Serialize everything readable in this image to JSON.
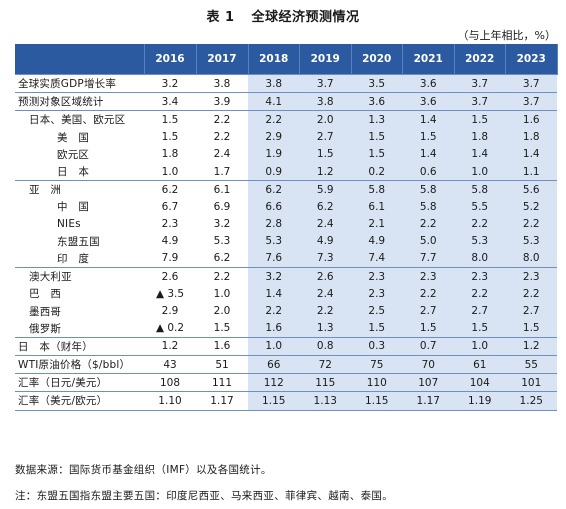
{
  "title": {
    "label": "表 1",
    "text": "全球经济预测情况"
  },
  "unit": "（与上年相比，%）",
  "columns": [
    "2016",
    "2017",
    "2018",
    "2019",
    "2020",
    "2021",
    "2022",
    "2023"
  ],
  "forecast_shading_color": "#d8e4f3",
  "header_color": "#2b5aa1",
  "rows": [
    {
      "label": "全球实质GDP增长率",
      "indent": 0,
      "sep": true,
      "values": [
        "3.2",
        "3.8",
        "3.8",
        "3.7",
        "3.5",
        "3.6",
        "3.7",
        "3.7"
      ]
    },
    {
      "label": "预测对象区域统计",
      "indent": 0,
      "sep": true,
      "values": [
        "3.4",
        "3.9",
        "4.1",
        "3.8",
        "3.6",
        "3.6",
        "3.7",
        "3.7"
      ]
    },
    {
      "label": "日本、美国、欧元区",
      "indent": 1,
      "sep": true,
      "values": [
        "1.5",
        "2.2",
        "2.2",
        "2.0",
        "1.3",
        "1.4",
        "1.5",
        "1.6"
      ]
    },
    {
      "label": "美　国",
      "indent": 2,
      "sep": false,
      "values": [
        "1.5",
        "2.2",
        "2.9",
        "2.7",
        "1.5",
        "1.5",
        "1.8",
        "1.8"
      ]
    },
    {
      "label": "欧元区",
      "indent": 2,
      "sep": false,
      "values": [
        "1.8",
        "2.4",
        "1.9",
        "1.5",
        "1.5",
        "1.4",
        "1.4",
        "1.4"
      ]
    },
    {
      "label": "日　本",
      "indent": 2,
      "sep": false,
      "values": [
        "1.0",
        "1.7",
        "0.9",
        "1.2",
        "0.2",
        "0.6",
        "1.0",
        "1.1"
      ]
    },
    {
      "label": "亚　洲",
      "indent": 1,
      "sep": true,
      "values": [
        "6.2",
        "6.1",
        "6.2",
        "5.9",
        "5.8",
        "5.8",
        "5.8",
        "5.6"
      ]
    },
    {
      "label": "中　国",
      "indent": 2,
      "sep": false,
      "values": [
        "6.7",
        "6.9",
        "6.6",
        "6.2",
        "6.1",
        "5.8",
        "5.5",
        "5.2"
      ]
    },
    {
      "label": "NIEs",
      "indent": 2,
      "sep": false,
      "values": [
        "2.3",
        "3.2",
        "2.8",
        "2.4",
        "2.1",
        "2.2",
        "2.2",
        "2.2"
      ]
    },
    {
      "label": "东盟五国",
      "indent": 2,
      "sep": false,
      "values": [
        "4.9",
        "5.3",
        "5.3",
        "4.9",
        "4.9",
        "5.0",
        "5.3",
        "5.3"
      ]
    },
    {
      "label": "印　度",
      "indent": 2,
      "sep": false,
      "values": [
        "7.9",
        "6.2",
        "7.6",
        "7.3",
        "7.4",
        "7.7",
        "8.0",
        "8.0"
      ]
    },
    {
      "label": "澳大利亚",
      "indent": 1,
      "sep": true,
      "values": [
        "2.6",
        "2.2",
        "3.2",
        "2.6",
        "2.3",
        "2.3",
        "2.3",
        "2.3"
      ]
    },
    {
      "label": "巴　西",
      "indent": 1,
      "sep": false,
      "values": [
        "▲ 3.5",
        "1.0",
        "1.4",
        "2.4",
        "2.3",
        "2.2",
        "2.2",
        "2.2"
      ]
    },
    {
      "label": "墨西哥",
      "indent": 1,
      "sep": false,
      "values": [
        "2.9",
        "2.0",
        "2.2",
        "2.2",
        "2.5",
        "2.7",
        "2.7",
        "2.7"
      ]
    },
    {
      "label": "俄罗斯",
      "indent": 1,
      "sep": false,
      "values": [
        "▲ 0.2",
        "1.5",
        "1.6",
        "1.3",
        "1.5",
        "1.5",
        "1.5",
        "1.5"
      ]
    },
    {
      "label": "日　本（财年）",
      "indent": 0,
      "sep": true,
      "values": [
        "1.2",
        "1.6",
        "1.0",
        "0.8",
        "0.3",
        "0.7",
        "1.0",
        "1.2"
      ]
    },
    {
      "label": "WTI原油价格（$/bbl）",
      "indent": 0,
      "sep": true,
      "values": [
        "43",
        "51",
        "66",
        "72",
        "75",
        "70",
        "61",
        "55"
      ]
    },
    {
      "label": "汇率（日元/美元）",
      "indent": 0,
      "sep": true,
      "values": [
        "108",
        "111",
        "112",
        "115",
        "110",
        "107",
        "104",
        "101"
      ]
    },
    {
      "label": "汇率（美元/欧元）",
      "indent": 0,
      "sep": true,
      "values": [
        "1.10",
        "1.17",
        "1.15",
        "1.13",
        "1.15",
        "1.17",
        "1.19",
        "1.25"
      ]
    }
  ],
  "notes": [
    "数据来源：国际货币基金组织（IMF）以及各国统计。",
    "注：东盟五国指东盟主要五国：印度尼西亚、马来西亚、菲律宾、越南、泰国。"
  ]
}
